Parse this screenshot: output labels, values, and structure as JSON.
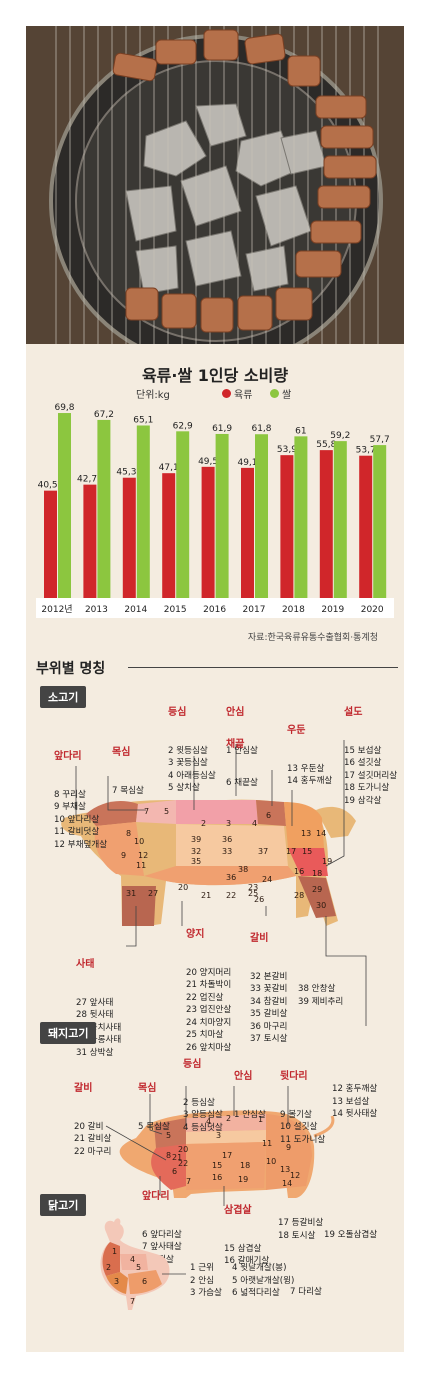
{
  "chart_data": {
    "type": "bar",
    "title": "육류·쌀 1인당 소비량",
    "unit_label": "단위:kg",
    "categories": [
      "2012년",
      "2013",
      "2014",
      "2015",
      "2016",
      "2017",
      "2018",
      "2019",
      "2020"
    ],
    "series": [
      {
        "name": "육류",
        "color": "#d0262a",
        "values": [
          40.51,
          42.78,
          45.39,
          47.1,
          49.5,
          49.1,
          53.9,
          55.8,
          53.7
        ],
        "labels": [
          "40,51",
          "42,78",
          "45,39",
          "47,1",
          "49,5",
          "49,1",
          "53,9",
          "55,8",
          "53,7"
        ]
      },
      {
        "name": "쌀",
        "color": "#8cc63f",
        "values": [
          69.8,
          67.2,
          65.1,
          62.9,
          61.9,
          61.8,
          61,
          59.2,
          57.7
        ],
        "labels": [
          "69,8",
          "67,2",
          "65,1",
          "62,9",
          "61,9",
          "61,8",
          "61",
          "59,2",
          "57,7"
        ]
      }
    ],
    "source": "자료:한국육류유통수출협회·통계청"
  },
  "section_title": "부위별 명칭",
  "beef": {
    "badge": "소고기",
    "groups": [
      {
        "title": "등심",
        "items": "2 윗등심살\n3 꽃등심살\n4 아래등심살\n5 살치살"
      },
      {
        "title": "안심",
        "items": "1 안심살"
      },
      {
        "title": "채끝",
        "items": "6 채끝살"
      },
      {
        "title": "우둔",
        "items": "13 우둔살\n14 홍두깨살"
      },
      {
        "title": "설도",
        "items": "15 보섭살\n16 설깃살\n17 설깃머리살\n18 도가니살\n19 삼각살"
      },
      {
        "title": "목심",
        "items": "7 목심살"
      },
      {
        "title": "앞다리",
        "items": "8 꾸리살\n9 부채살\n10 앞다리살\n11 갈비덧살\n12 부채덮개살"
      },
      {
        "title": "양지",
        "items": "20 양지머리\n21 차돌박이\n22 업진살\n23 업진안살\n24 치마양지\n25 치마살\n26 앞치마살"
      },
      {
        "title": "갈비",
        "items": "32 본갈비\n33 꽃갈비\n34 참갈비\n35 갈비살\n36 마구리\n37 토시살"
      },
      {
        "title": "",
        "items": "38 안창살\n39 제비추리"
      },
      {
        "title": "사태",
        "items": "27 앞사태\n28 뒷사태\n29 뭉치사태\n30 아롱사태\n31 상박살"
      }
    ]
  },
  "pork": {
    "badge": "돼지고기",
    "groups": [
      {
        "title": "등심",
        "items": "2 등심살\n3 알등심살\n4 등심덧살"
      },
      {
        "title": "안심",
        "items": "1 안심살"
      },
      {
        "title": "뒷다리",
        "items": "9 볼기살\n10 설깃살\n11 도가니살"
      },
      {
        "title": "",
        "items": "12 홍두깨살\n13 보섭살\n14 뒷사태살"
      },
      {
        "title": "목심",
        "items": "5 목심살"
      },
      {
        "title": "갈비",
        "items": "20 갈비\n21 갈비살\n22 마구리"
      },
      {
        "title": "앞다리",
        "items": "6 앞다리살\n7 앞사태살\n8 항정살"
      },
      {
        "title": "삼겹살",
        "items": "15 삼겹살\n16 갈매기살"
      },
      {
        "title": "",
        "items": "17 등갈비살\n18 토시살"
      },
      {
        "title": "",
        "items": "19 오돌삼겹살"
      }
    ]
  },
  "chicken": {
    "badge": "닭고기",
    "col1": "1 근위\n2 안심\n3 가슴살",
    "col2": "4 윗날개살(봉)\n5 아랫날개살(윙)\n6 넓적다리살",
    "col3": "7 다리살"
  }
}
